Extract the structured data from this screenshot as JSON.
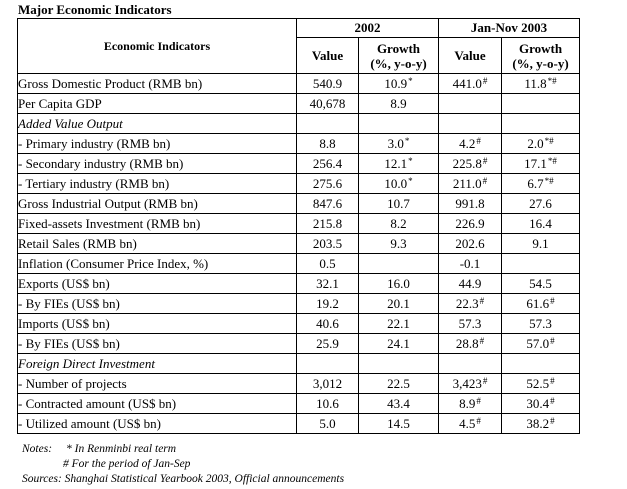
{
  "title": "Major Economic Indicators",
  "header": {
    "indicator_label": "Economic Indicators",
    "period1": "2002",
    "period2": "Jan-Nov 2003",
    "value_label": "Value",
    "growth_label_line1": "Growth",
    "growth_label_line2": "(%, y-o-y)"
  },
  "rows": [
    {
      "label": "Gross Domestic Product (RMB bn)",
      "v2002": "540.9",
      "g2002": "10.9",
      "g2002_mark": "*",
      "v2003": "441.0",
      "v2003_mark": "#",
      "g2003": "11.8",
      "g2003_mark": "*#"
    },
    {
      "label": "Per Capita GDP",
      "v2002": "40,678",
      "g2002": "8.9",
      "g2002_mark": "",
      "v2003": "",
      "v2003_mark": "",
      "g2003": "",
      "g2003_mark": ""
    },
    {
      "label": "Added Value Output",
      "section": true
    },
    {
      "label": "- Primary industry (RMB bn)",
      "v2002": "8.8",
      "g2002": "3.0",
      "g2002_mark": "*",
      "v2003": "4.2",
      "v2003_mark": "#",
      "g2003": "2.0",
      "g2003_mark": "*#"
    },
    {
      "label": "- Secondary industry (RMB bn)",
      "v2002": "256.4",
      "g2002": "12.1",
      "g2002_mark": "*",
      "v2003": "225.8",
      "v2003_mark": "#",
      "g2003": "17.1",
      "g2003_mark": "*#"
    },
    {
      "label": "- Tertiary industry (RMB bn)",
      "v2002": "275.6",
      "g2002": "10.0",
      "g2002_mark": "*",
      "v2003": "211.0",
      "v2003_mark": "#",
      "g2003": "6.7",
      "g2003_mark": "*#"
    },
    {
      "label": "Gross Industrial Output (RMB bn)",
      "v2002": "847.6",
      "g2002": "10.7",
      "g2002_mark": "",
      "v2003": "991.8",
      "v2003_mark": "",
      "g2003": "27.6",
      "g2003_mark": ""
    },
    {
      "label": "Fixed-assets Investment (RMB bn)",
      "v2002": "215.8",
      "g2002": "8.2",
      "g2002_mark": "",
      "v2003": "226.9",
      "v2003_mark": "",
      "g2003": "16.4",
      "g2003_mark": ""
    },
    {
      "label": "Retail Sales (RMB bn)",
      "v2002": "203.5",
      "g2002": "9.3",
      "g2002_mark": "",
      "v2003": "202.6",
      "v2003_mark": "",
      "g2003": "9.1",
      "g2003_mark": ""
    },
    {
      "label": "Inflation (Consumer Price Index, %)",
      "v2002": "0.5",
      "g2002": "",
      "g2002_mark": "",
      "v2003": "-0.1",
      "v2003_mark": "",
      "g2003": "",
      "g2003_mark": ""
    },
    {
      "label": "Exports (US$ bn)",
      "v2002": "32.1",
      "g2002": "16.0",
      "g2002_mark": "",
      "v2003": "44.9",
      "v2003_mark": "",
      "g2003": "54.5",
      "g2003_mark": ""
    },
    {
      "label": "- By FIEs (US$ bn)",
      "v2002": "19.2",
      "g2002": "20.1",
      "g2002_mark": "",
      "v2003": "22.3",
      "v2003_mark": "#",
      "g2003": "61.6",
      "g2003_mark": "#"
    },
    {
      "label": "Imports (US$ bn)",
      "v2002": "40.6",
      "g2002": "22.1",
      "g2002_mark": "",
      "v2003": "57.3",
      "v2003_mark": "",
      "g2003": "57.3",
      "g2003_mark": ""
    },
    {
      "label": "- By FIEs (US$ bn)",
      "v2002": "25.9",
      "g2002": "24.1",
      "g2002_mark": "",
      "v2003": "28.8",
      "v2003_mark": "#",
      "g2003": "57.0",
      "g2003_mark": "#"
    },
    {
      "label": "Foreign Direct Investment",
      "section": true
    },
    {
      "label": "- Number of projects",
      "v2002": "3,012",
      "g2002": "22.5",
      "g2002_mark": "",
      "v2003": "3,423",
      "v2003_mark": "#",
      "g2003": "52.5",
      "g2003_mark": "#"
    },
    {
      "label": "- Contracted amount (US$ bn)",
      "v2002": "10.6",
      "g2002": "43.4",
      "g2002_mark": "",
      "v2003": "8.9",
      "v2003_mark": "#",
      "g2003": "30.4",
      "g2003_mark": "#"
    },
    {
      "label": "- Utilized amount (US$ bn)",
      "v2002": "5.0",
      "g2002": "14.5",
      "g2002_mark": "",
      "v2003": "4.5",
      "v2003_mark": "#",
      "g2003": "38.2",
      "g2003_mark": "#"
    }
  ],
  "notes": {
    "label": "Notes:",
    "line1": "* In Renminbi real term",
    "line2": "# For the period of Jan-Sep",
    "sources": "Sources: Shanghai Statistical Yearbook 2003, Official announcements"
  }
}
